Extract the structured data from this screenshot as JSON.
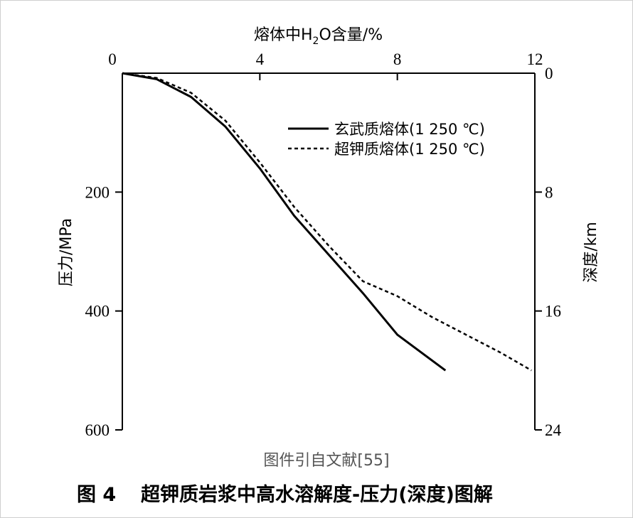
{
  "chart_data": {
    "type": "line",
    "title": "",
    "x_top_label": "熔体中H₂O含量/%",
    "x_top_label_base": "熔体中H",
    "x_top_label_sub": "2",
    "x_top_label_rest": "O含量/%",
    "y_left_label": "压力/MPa",
    "y_right_label": "深度/km",
    "x_range": [
      0,
      12
    ],
    "y_left_range": [
      0,
      600
    ],
    "y_right_range": [
      0,
      24
    ],
    "x_ticks": [
      "0",
      "4",
      "8",
      "12"
    ],
    "y_left_ticks": [
      "200",
      "400",
      "600"
    ],
    "y_right_ticks": [
      "0",
      "8",
      "16",
      "24"
    ],
    "x_inverted_axis_note": "y axes increase downward",
    "legend_position": "upper-right",
    "series": [
      {
        "name": "玄武质熔体(1 250 ℃)",
        "style": "solid",
        "x": [
          0,
          1.0,
          2.0,
          3.0,
          4.0,
          5.0,
          6.0,
          7.0,
          8.0,
          9.4
        ],
        "y": [
          0,
          10,
          40,
          90,
          160,
          240,
          305,
          370,
          440,
          500
        ]
      },
      {
        "name": "超钾质熔体(1 250 ℃)",
        "style": "dashed",
        "x": [
          0,
          1.0,
          2.0,
          3.0,
          4.0,
          5.0,
          6.0,
          7.0,
          8.0,
          9.0,
          10.0,
          11.0,
          11.9
        ],
        "y": [
          0,
          8,
          33,
          80,
          150,
          225,
          290,
          350,
          375,
          410,
          440,
          470,
          500
        ]
      }
    ]
  },
  "source_note": "图件引自文献[55]",
  "caption": {
    "label": "图 4",
    "text": "超钾质岩浆中高水溶解度-压力(深度)图解"
  }
}
